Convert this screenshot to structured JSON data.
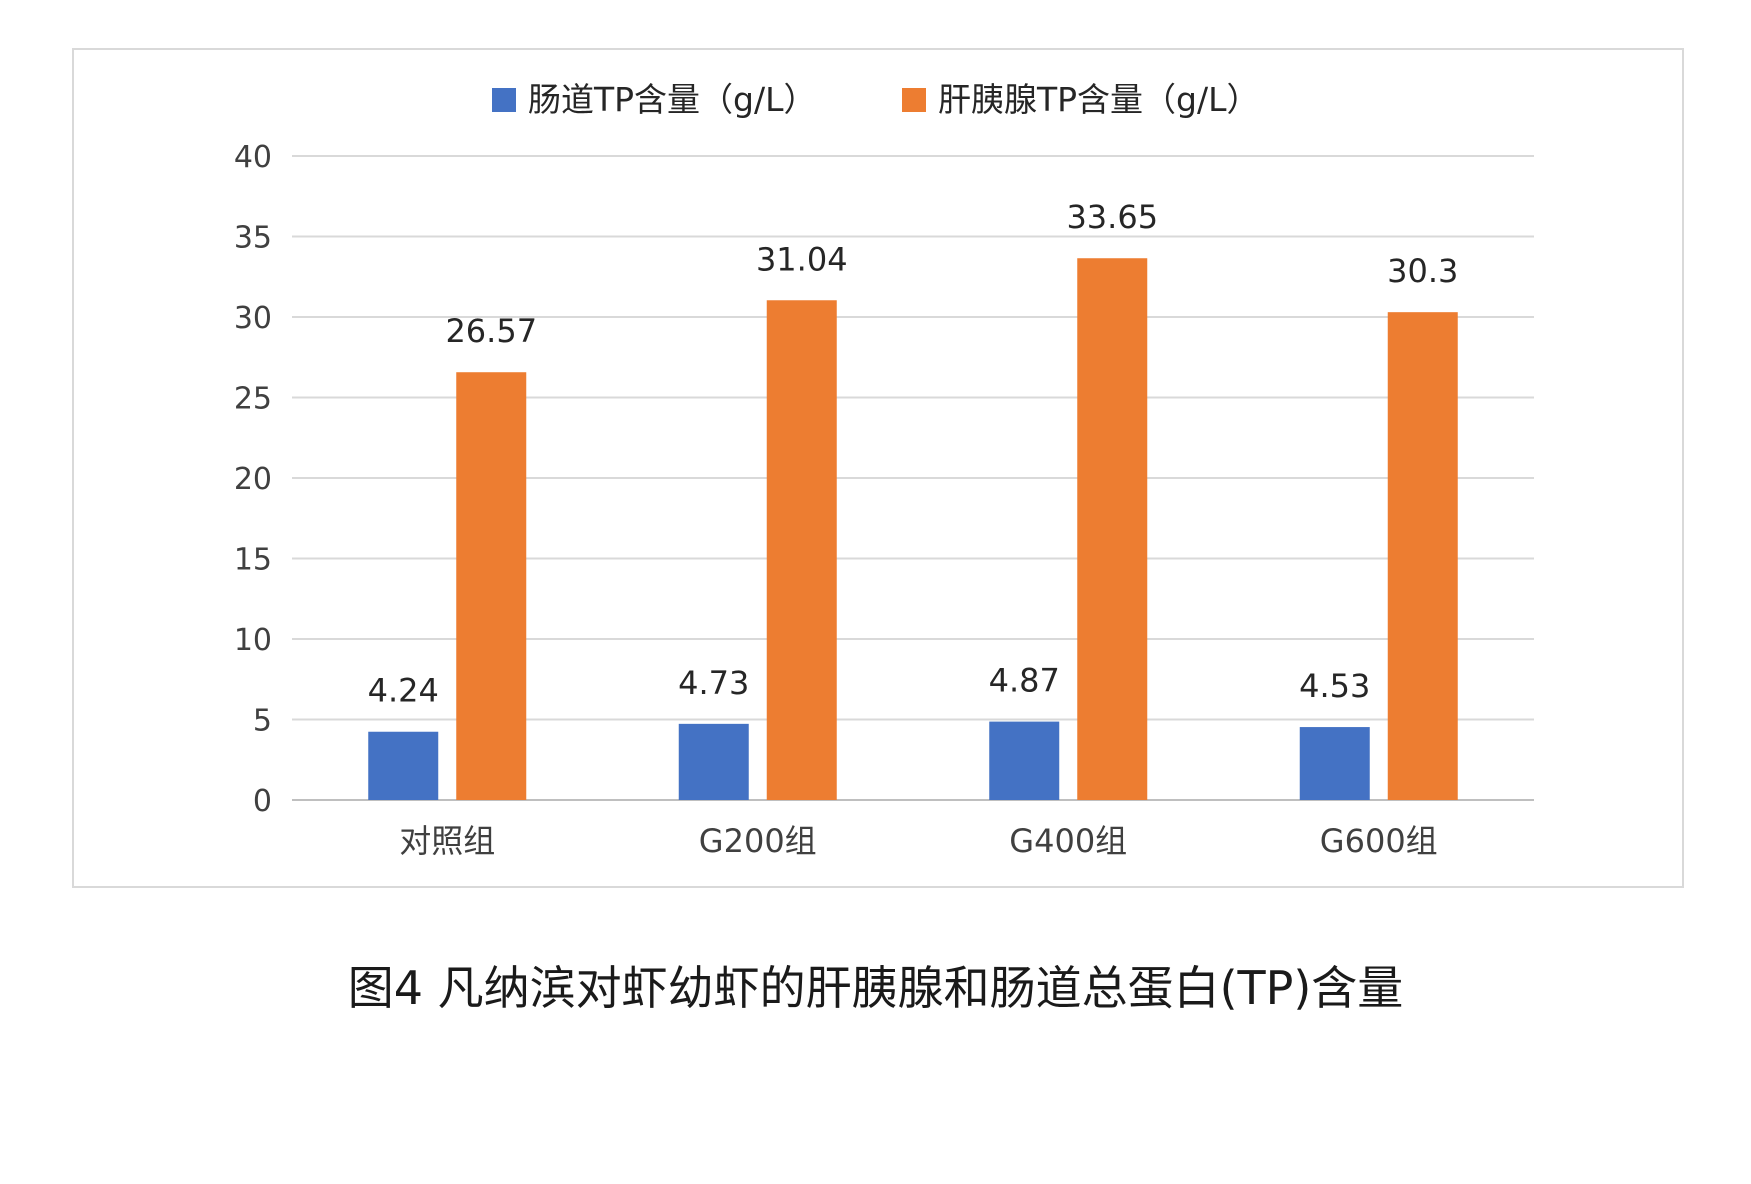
{
  "caption": "图4 凡纳滨对虾幼虾的肝胰腺和肠道总蛋白(TP)含量",
  "chart_data": {
    "type": "bar",
    "categories": [
      "对照组",
      "G200组",
      "G400组",
      "G600组"
    ],
    "series": [
      {
        "name": "肠道TP含量（g/L）",
        "color": "#4472C4",
        "values": [
          4.24,
          4.73,
          4.87,
          4.53
        ]
      },
      {
        "name": "肝胰腺TP含量（g/L）",
        "color": "#ED7D31",
        "values": [
          26.57,
          31.04,
          33.65,
          30.3
        ]
      }
    ],
    "data_labels": [
      [
        "4.24",
        "4.73",
        "4.87",
        "4.53"
      ],
      [
        "26.57",
        "31.04",
        "33.65",
        "30.3"
      ]
    ],
    "ylim": [
      0,
      40
    ],
    "yticks": [
      "0",
      "5",
      "10",
      "15",
      "20",
      "25",
      "30",
      "35",
      "40"
    ],
    "grid": true,
    "legend": "top"
  }
}
